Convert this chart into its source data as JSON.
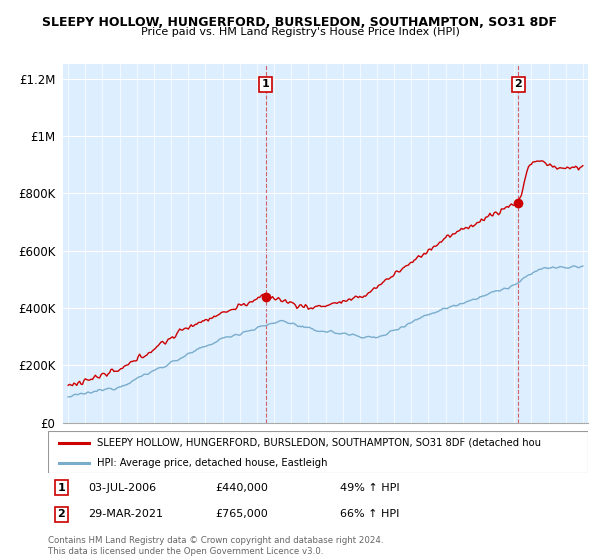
{
  "title": "SLEEPY HOLLOW, HUNGERFORD, BURSLEDON, SOUTHAMPTON, SO31 8DF",
  "subtitle": "Price paid vs. HM Land Registry's House Price Index (HPI)",
  "legend_line1": "SLEEPY HOLLOW, HUNGERFORD, BURSLEDON, SOUTHAMPTON, SO31 8DF (detached hou",
  "legend_line2": "HPI: Average price, detached house, Eastleigh",
  "footnote": "Contains HM Land Registry data © Crown copyright and database right 2024.\nThis data is licensed under the Open Government Licence v3.0.",
  "annotation1": {
    "label": "1",
    "date": "03-JUL-2006",
    "price": "£440,000",
    "pct": "49% ↑ HPI"
  },
  "annotation2": {
    "label": "2",
    "date": "29-MAR-2021",
    "price": "£765,000",
    "pct": "66% ↑ HPI"
  },
  "red_color": "#cc0000",
  "blue_color": "#7aadcc",
  "blue_fill": "#ddeeff",
  "background_color": "#ffffff",
  "grid_color": "#cccccc",
  "ylim": [
    0,
    1250000
  ],
  "yticks": [
    0,
    200000,
    400000,
    600000,
    800000,
    1000000,
    1200000
  ],
  "ytick_labels": [
    "£0",
    "£200K",
    "£400K",
    "£600K",
    "£800K",
    "£1M",
    "£1.2M"
  ],
  "sale1_year": 2006.504,
  "sale1_price": 440000,
  "sale2_year": 2021.238,
  "sale2_price": 765000
}
